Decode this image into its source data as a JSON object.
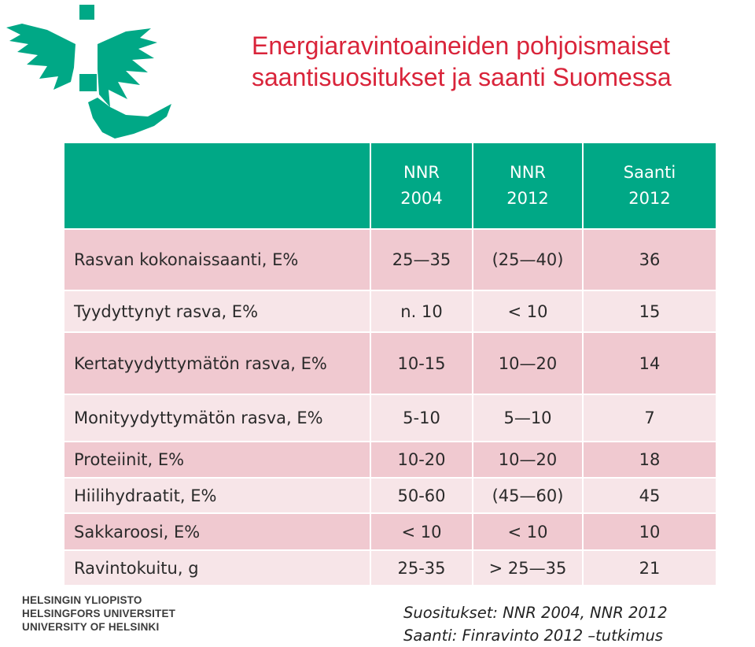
{
  "title": {
    "line1": "Energiaravintoaineiden pohjoismaiset",
    "line2": "saantisuositukset ja saanti Suomessa"
  },
  "table": {
    "columns": [
      {
        "line1": "",
        "line2": ""
      },
      {
        "line1": "NNR",
        "line2": "2004"
      },
      {
        "line1": "NNR",
        "line2": "2012"
      },
      {
        "line1": "Saanti",
        "line2": "2012"
      }
    ],
    "rows": [
      {
        "label": "Rasvan kokonaissaanti, E%",
        "values": [
          "25—35",
          "(25—40)",
          "36"
        ]
      },
      {
        "label": "Tyydyttynyt rasva, E%",
        "values": [
          "n. 10",
          "< 10",
          "15"
        ]
      },
      {
        "label": "Kertatyydyttymätön rasva, E%",
        "values": [
          "10-15",
          "10—20",
          "14"
        ]
      },
      {
        "label": "Monityydyttymätön rasva, E%",
        "values": [
          "5-10",
          "5—10",
          "7"
        ]
      },
      {
        "label": "Proteiinit, E%",
        "values": [
          "10-20",
          "10—20",
          "18"
        ]
      },
      {
        "label": "Hiilihydraatit, E%",
        "values": [
          "50-60",
          "(45—60)",
          "45"
        ]
      },
      {
        "label": "Sakkaroosi, E%",
        "values": [
          "< 10",
          "< 10",
          "10"
        ]
      },
      {
        "label": "Ravintokuitu, g",
        "values": [
          "25-35",
          "> 25—35",
          "21"
        ]
      }
    ]
  },
  "university": {
    "line1": "HELSINGIN YLIOPISTO",
    "line2": "HELSINGFORS UNIVERSITET",
    "line3": "UNIVERSITY OF HELSINKI"
  },
  "notes": {
    "line1": "Suositukset: NNR 2004, NNR 2012",
    "line2": "Saanti: Finravinto 2012 –tutkimus"
  },
  "colors": {
    "title": "#d9243a",
    "header": "#00a886",
    "row_dark": "#f0c9d0",
    "row_light": "#f7e5e8",
    "logo": "#00a886"
  }
}
